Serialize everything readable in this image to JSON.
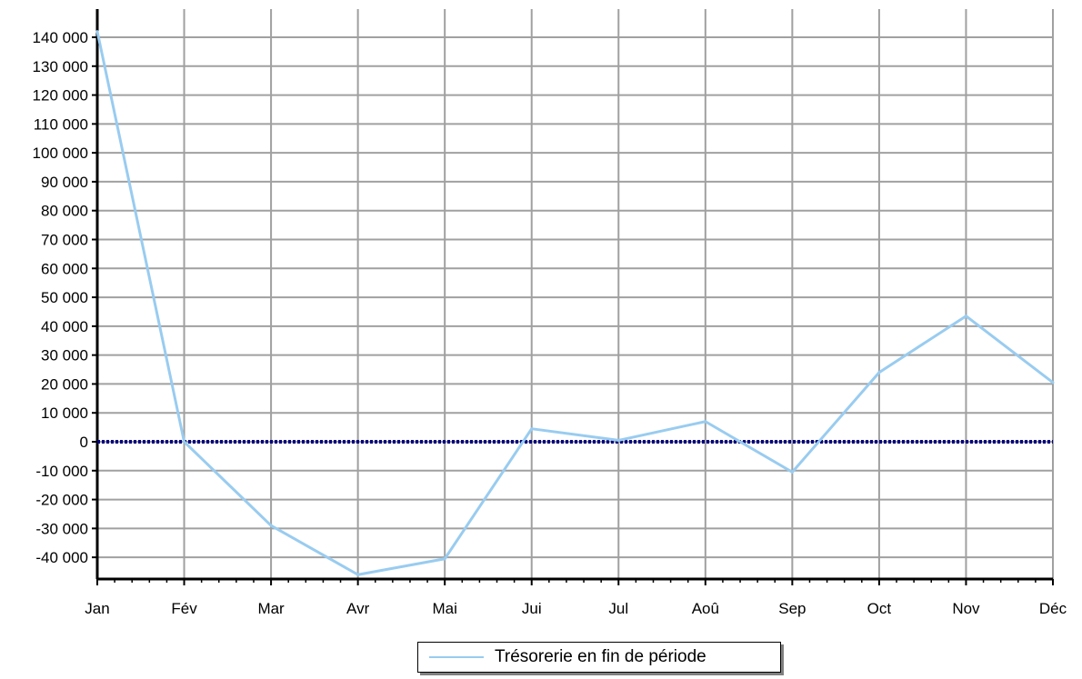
{
  "chart_data": {
    "type": "line",
    "title": "",
    "xlabel": "",
    "ylabel": "",
    "categories": [
      "Jan",
      "Fév",
      "Mar",
      "Avr",
      "Mai",
      "Jui",
      "Jul",
      "Aoû",
      "Sep",
      "Oct",
      "Nov",
      "Déc"
    ],
    "ylim": [
      -48000,
      145000
    ],
    "yticks": [
      140000,
      130000,
      120000,
      110000,
      100000,
      90000,
      80000,
      70000,
      60000,
      50000,
      40000,
      30000,
      20000,
      10000,
      0,
      -10000,
      -20000,
      -30000,
      -40000
    ],
    "ytick_labels": [
      "140 000",
      "130 000",
      "120 000",
      "110 000",
      "100 000",
      "90 000",
      "80 000",
      "70 000",
      "60 000",
      "50 000",
      "40 000",
      "30 000",
      "20 000",
      "10 000",
      "0",
      "-10 000",
      "-20 000",
      "-30 000",
      "-40 000"
    ],
    "grid": true,
    "legend_position": "bottom-center",
    "series": [
      {
        "name": "Trésorerie en fin de période",
        "color": "#99CCF0",
        "values": [
          142000,
          0,
          -29000,
          -46000,
          -40500,
          4500,
          500,
          7000,
          -10500,
          24000,
          43500,
          20500
        ]
      }
    ],
    "reference_line": {
      "value": 0,
      "color": "#000080",
      "style": "dotted"
    },
    "colors": {
      "grid": "#A0A0A0",
      "axis": "#000000"
    }
  }
}
